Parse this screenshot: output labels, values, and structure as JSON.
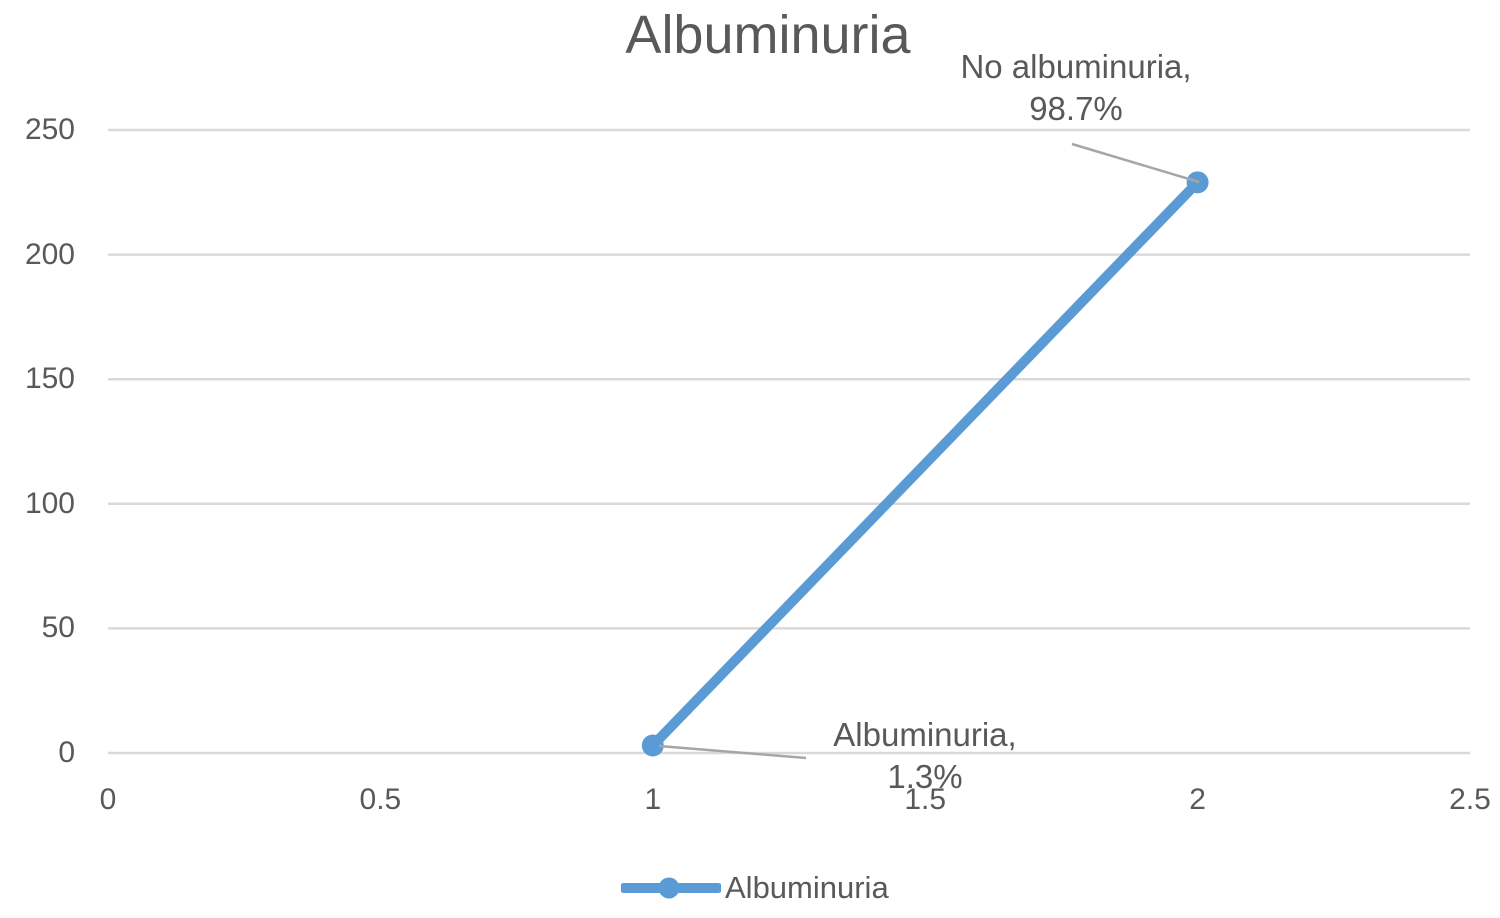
{
  "chart_data": {
    "type": "line",
    "title": "Albuminuria",
    "x": [
      1,
      2
    ],
    "series": [
      {
        "name": "Albuminuria",
        "values": [
          3,
          229
        ],
        "color": "#5B9BD5",
        "marker": "circle"
      }
    ],
    "point_labels": [
      {
        "point": {
          "x": 1,
          "y": 3
        },
        "lines": [
          "Albuminuria,",
          "1.3%"
        ]
      },
      {
        "point": {
          "x": 2,
          "y": 229
        },
        "lines": [
          "No albuminuria,",
          "98.7%"
        ]
      }
    ],
    "x_ticks": [
      "0",
      "0.5",
      "1",
      "1.5",
      "2",
      "2.5"
    ],
    "y_ticks": [
      "0",
      "50",
      "100",
      "150",
      "200",
      "250"
    ],
    "xlim": [
      0,
      2.5
    ],
    "ylim": [
      0,
      250
    ],
    "grid": "horizontal-only",
    "legend": {
      "position": "bottom",
      "entries": [
        "Albuminuria"
      ]
    }
  },
  "colors": {
    "series_blue": "#5B9BD5",
    "gridline": "#D9D9D9",
    "leader_line": "#A6A6A6",
    "text": "#595959",
    "background": "#FFFFFF"
  }
}
